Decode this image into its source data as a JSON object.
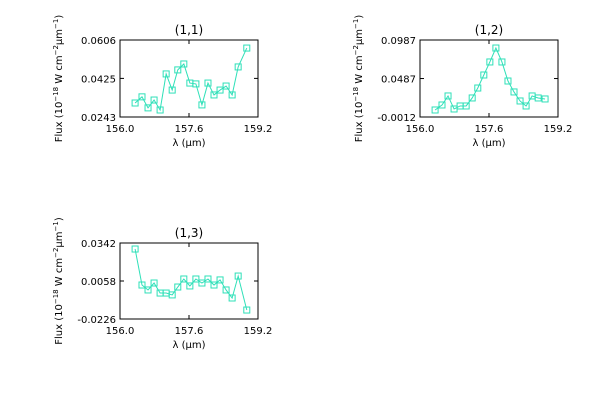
{
  "chart_data": [
    {
      "type": "line",
      "title": "(1,1)",
      "xlabel": "λ (μm)",
      "ylabel": [
        "Flux (10",
        "−18",
        " W cm",
        "−2",
        "μm",
        "−1",
        ")"
      ],
      "color": "#2ee0b8",
      "x": [
        156.35,
        156.51,
        156.65,
        156.79,
        156.93,
        157.07,
        157.21,
        157.34,
        157.48,
        157.62,
        157.76,
        157.9,
        158.04,
        158.18,
        158.32,
        158.46,
        158.6,
        158.74,
        158.94
      ],
      "values": [
        0.0309,
        0.0338,
        0.0286,
        0.0323,
        0.0276,
        0.0446,
        0.037,
        0.0465,
        0.0493,
        0.0403,
        0.0399,
        0.03,
        0.0403,
        0.0347,
        0.037,
        0.0389,
        0.0347,
        0.0479,
        0.0568
      ],
      "xlim": [
        156.0,
        159.2
      ],
      "xticks": [
        {
          "value": 156.0,
          "label": "156.0"
        },
        157.6,
        {
          "value": 159.2,
          "label": "159.2"
        }
      ],
      "ylim": [
        0.0243,
        0.0606
      ],
      "yticks": [
        0.0243,
        0.0425,
        0.0606
      ]
    },
    {
      "type": "line",
      "title": "(1,2)",
      "xlabel": "λ (μm)",
      "ylabel": [
        "Flux (10",
        "−18",
        " W cm",
        "−2",
        "μm",
        "−1",
        ")"
      ],
      "color": "#2ee0b8",
      "x": [
        156.35,
        156.51,
        156.65,
        156.79,
        156.93,
        157.07,
        157.21,
        157.34,
        157.48,
        157.62,
        157.76,
        157.9,
        158.04,
        158.18,
        158.32,
        158.46,
        158.6,
        158.74,
        158.9
      ],
      "values": [
        0.0079,
        0.0144,
        0.0261,
        0.0092,
        0.0131,
        0.0131,
        0.0235,
        0.0364,
        0.0533,
        0.0702,
        0.0883,
        0.0702,
        0.0455,
        0.0313,
        0.0196,
        0.0131,
        0.0261,
        0.0235,
        0.0222
      ],
      "xlim": [
        156.0,
        159.2
      ],
      "xticks": [
        {
          "value": 156.0,
          "label": "156.0"
        },
        157.6,
        {
          "value": 159.2,
          "label": "159.2"
        }
      ],
      "ylim": [
        -0.0012,
        0.0987
      ],
      "yticks": [
        -0.0012,
        0.0487,
        0.0987
      ]
    },
    {
      "type": "line",
      "title": "(1,3)",
      "xlabel": "λ (μm)",
      "ylabel": [
        "Flux (10",
        "−18",
        " W cm",
        "−2",
        "μm",
        "−1",
        ")"
      ],
      "color": "#2ee0b8",
      "x": [
        156.35,
        156.51,
        156.65,
        156.79,
        156.93,
        157.07,
        157.21,
        157.34,
        157.48,
        157.62,
        157.76,
        157.9,
        158.04,
        158.18,
        158.32,
        158.46,
        158.6,
        158.74,
        158.94
      ],
      "values": [
        0.0297,
        0.0028,
        -0.0009,
        0.0043,
        -0.0032,
        -0.0032,
        -0.0046,
        0.0013,
        0.0073,
        0.0021,
        0.0073,
        0.0043,
        0.0073,
        0.0028,
        0.0066,
        -0.0009,
        -0.0069,
        0.0095,
        -0.0159
      ],
      "xlim": [
        156.0,
        159.2
      ],
      "xticks": [
        {
          "value": 156.0,
          "label": "156.0"
        },
        157.6,
        {
          "value": 159.2,
          "label": "159.2"
        }
      ],
      "ylim": [
        -0.0226,
        0.0342
      ],
      "yticks": [
        -0.0226,
        0.0058,
        0.0342
      ]
    }
  ]
}
